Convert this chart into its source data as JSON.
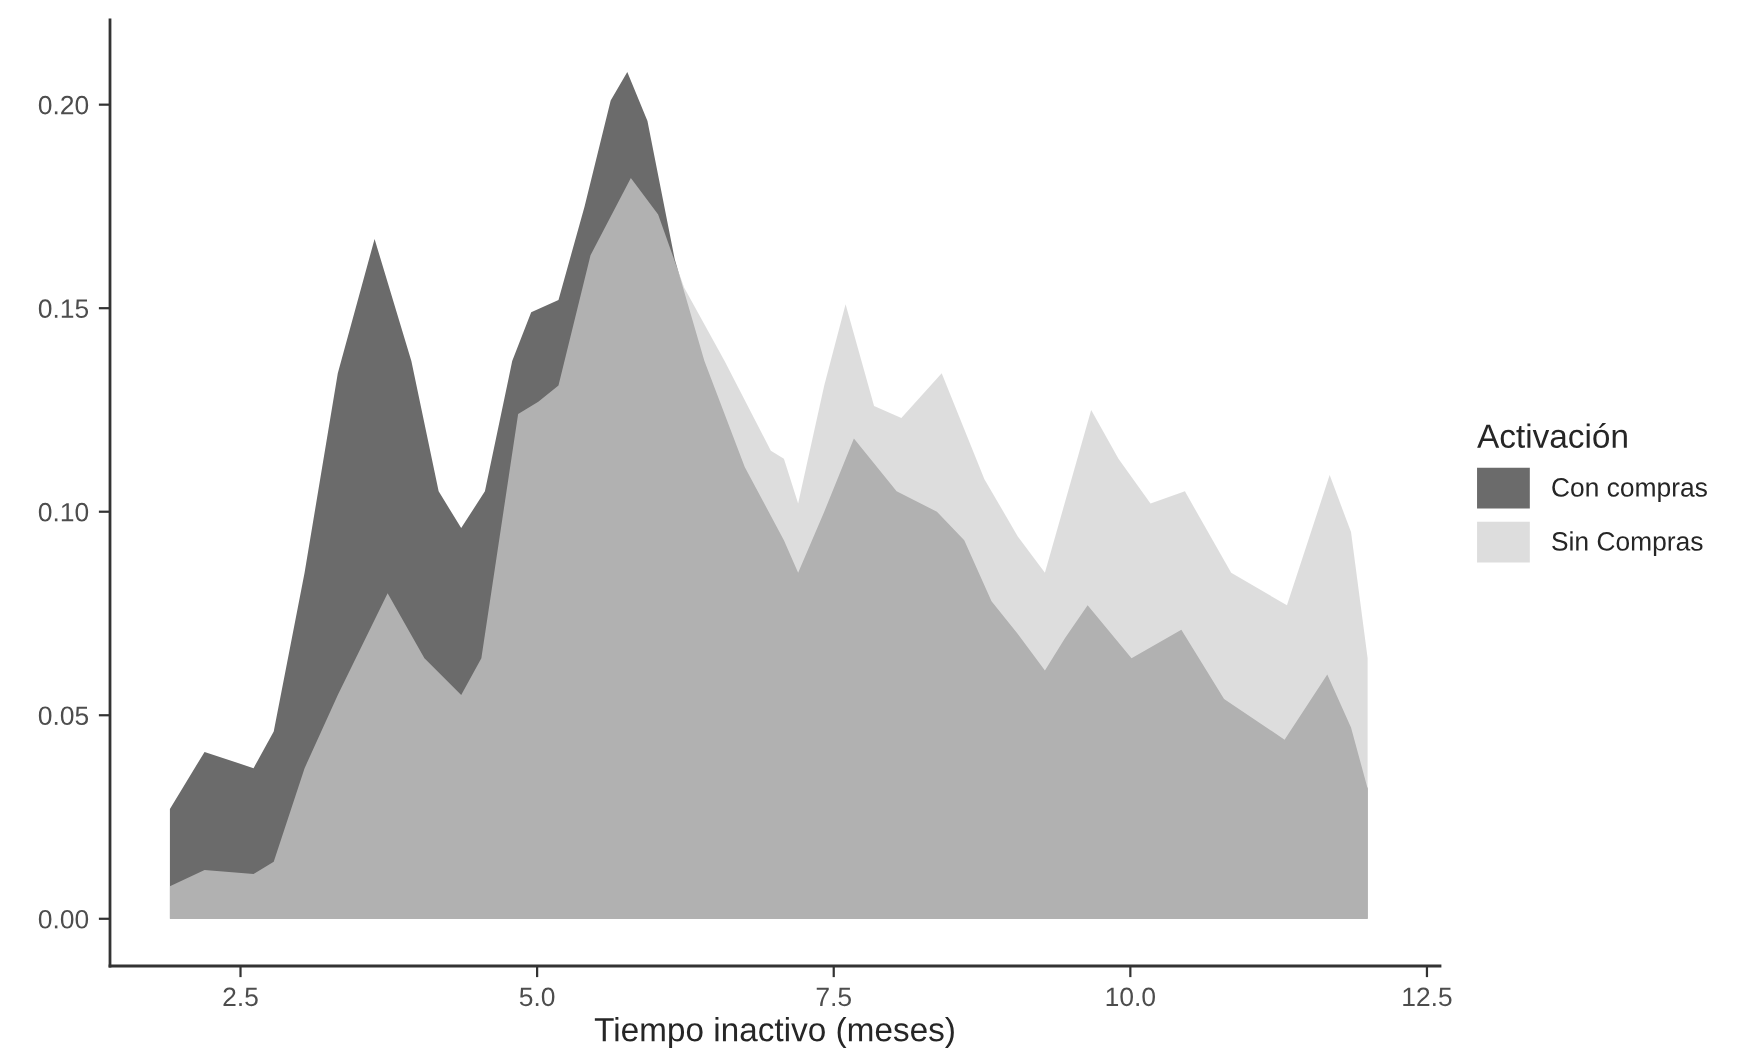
{
  "chart_data": {
    "type": "area",
    "xlabel": "Tiempo inactivo (meses)",
    "legend_title": "Activación",
    "legend": "right",
    "grid": false,
    "xlim": [
      1.4,
      12.61
    ],
    "xticks": [
      2.5,
      {
        "value": 5,
        "label": "5.0"
      },
      7.5,
      {
        "value": 10,
        "label": "10.0"
      },
      12.5
    ],
    "ylim": [
      -0.0116,
      0.2208
    ],
    "yticks": [
      {
        "value": 0,
        "label": "0.00"
      },
      {
        "value": 0.05,
        "label": "0.05"
      },
      {
        "value": 0.1,
        "label": "0.10"
      },
      {
        "value": 0.15,
        "label": "0.15"
      },
      {
        "value": 0.2,
        "label": "0.20"
      }
    ],
    "series": [
      {
        "name": "Con compras",
        "color": "#6b6b6b",
        "x": [
          1.905,
          2.197,
          2.61,
          2.78,
          3.04,
          3.32,
          3.63,
          3.94,
          4.17,
          4.36,
          4.56,
          4.79,
          4.95,
          5.18,
          5.4,
          5.62,
          5.76,
          5.93,
          6.16,
          6.41,
          6.75,
          7.08,
          7.2,
          7.42,
          7.67,
          8.03,
          8.37,
          8.6,
          8.83,
          9.05,
          9.28,
          9.45,
          9.64,
          10.01,
          10.43,
          10.79,
          11.3,
          11.66,
          11.86,
          12.0
        ],
        "values": [
          0.027,
          0.041,
          0.037,
          0.046,
          0.085,
          0.134,
          0.167,
          0.137,
          0.105,
          0.096,
          0.105,
          0.137,
          0.149,
          0.152,
          0.175,
          0.201,
          0.208,
          0.196,
          0.162,
          0.137,
          0.111,
          0.093,
          0.085,
          0.1,
          0.118,
          0.105,
          0.1,
          0.093,
          0.078,
          0.07,
          0.061,
          0.069,
          0.077,
          0.064,
          0.071,
          0.054,
          0.044,
          0.06,
          0.047,
          0.032
        ]
      },
      {
        "name": "Sin Compras",
        "color": "#cecece",
        "x": [
          1.905,
          2.197,
          2.61,
          2.78,
          3.04,
          3.32,
          3.74,
          4.05,
          4.36,
          4.53,
          4.84,
          5.01,
          5.18,
          5.45,
          5.79,
          6.02,
          6.24,
          6.58,
          6.97,
          7.08,
          7.2,
          7.42,
          7.6,
          7.84,
          8.07,
          8.41,
          8.77,
          9.05,
          9.28,
          9.67,
          9.9,
          10.17,
          10.46,
          10.85,
          11.32,
          11.68,
          11.86,
          12.0
        ],
        "values": [
          0.008,
          0.012,
          0.011,
          0.014,
          0.037,
          0.055,
          0.08,
          0.064,
          0.055,
          0.064,
          0.124,
          0.127,
          0.131,
          0.163,
          0.182,
          0.173,
          0.155,
          0.137,
          0.115,
          0.113,
          0.102,
          0.131,
          0.151,
          0.126,
          0.123,
          0.134,
          0.108,
          0.094,
          0.085,
          0.125,
          0.113,
          0.102,
          0.105,
          0.085,
          0.077,
          0.109,
          0.095,
          0.064
        ]
      }
    ]
  }
}
